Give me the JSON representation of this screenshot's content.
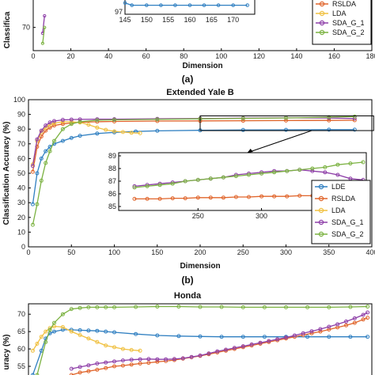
{
  "colors": {
    "LDE": "#2f7fc1",
    "RSLDA": "#e0642a",
    "LDA": "#f0c040",
    "SDA_G_1": "#8e3fa8",
    "SDA_G_2": "#7bb241",
    "axis": "#000000",
    "grid": "#d9d9d9"
  },
  "panels": [
    {
      "label": "(a)"
    },
    {
      "label": "(b)"
    }
  ],
  "chart_data": [
    {
      "id": "top",
      "type": "line",
      "title": "",
      "xlabel": "Dimension",
      "ylabel": "Classification Accuracy (%)",
      "ylabel_visible": "Classifica",
      "xlim": [
        0,
        180
      ],
      "ylim": [
        62,
        80
      ],
      "xticks": [
        0,
        20,
        40,
        60,
        80,
        100,
        120,
        140,
        160,
        180
      ],
      "xtick_labels": [
        "0",
        "20",
        "40",
        "60",
        "80",
        "100",
        "120",
        "140",
        "160",
        "180"
      ],
      "yticks": [
        70
      ],
      "ytick_labels": [
        "70"
      ],
      "legend": [
        "RSLDA",
        "LDA",
        "SDA_G_1",
        "SDA_G_2"
      ],
      "series": [
        {
          "name": "SDA_G_1",
          "x": [
            5,
            6
          ],
          "y": [
            68,
            74
          ]
        },
        {
          "name": "SDA_G_2",
          "x": [
            5,
            6
          ],
          "y": [
            64.5,
            70
          ]
        }
      ],
      "inset": {
        "xticks": [
          145,
          150,
          155,
          160,
          165,
          170
        ],
        "ytick_labels": [
          "97"
        ],
        "series": [
          {
            "name": "LDE",
            "x": [
              145,
              146.6,
              150,
              153.3,
              156.6,
              160,
              163.3,
              166.6,
              170,
              173.3
            ],
            "y": [
              97,
              96.9,
              96.9,
              96.9,
              96.9,
              96.9,
              96.9,
              96.9,
              96.9,
              96.9
            ]
          }
        ]
      }
    },
    {
      "id": "yaleb",
      "type": "line",
      "title": "Extended Yale B",
      "xlabel": "Dimension",
      "ylabel": "Classification Accuracy (%)",
      "xlim": [
        0,
        400
      ],
      "ylim": [
        0,
        100
      ],
      "xticks": [
        0,
        50,
        100,
        150,
        200,
        250,
        300,
        350,
        400
      ],
      "yticks": [
        0,
        10,
        20,
        30,
        40,
        50,
        60,
        70,
        80,
        90,
        100
      ],
      "legend": [
        "LDE",
        "RSLDA",
        "LDA",
        "SDA_G_1",
        "SDA_G_2"
      ],
      "series": [
        {
          "name": "LDE",
          "x": [
            5,
            10,
            15,
            20,
            25,
            30,
            40,
            50,
            60,
            80,
            100,
            125,
            150,
            200,
            250,
            300,
            350,
            380
          ],
          "y": [
            29,
            50,
            60,
            65,
            68,
            70,
            72,
            74,
            75.5,
            77,
            77.8,
            78.4,
            78.8,
            79.2,
            79.4,
            79.5,
            79.6,
            79.6
          ]
        },
        {
          "name": "RSLDA",
          "x": [
            5,
            10,
            15,
            20,
            25,
            30,
            40,
            50,
            60,
            80,
            100,
            150,
            200,
            250,
            300,
            350,
            380
          ],
          "y": [
            51,
            68,
            75,
            79,
            81,
            82.5,
            83.5,
            84.2,
            84.6,
            85,
            85.2,
            85.5,
            85.6,
            85.7,
            85.8,
            85.9,
            86
          ]
        },
        {
          "name": "LDA",
          "x": [
            5,
            10,
            15,
            20,
            25,
            30,
            40,
            50,
            60,
            70,
            80,
            90,
            100,
            110,
            120,
            130
          ],
          "y": [
            56,
            72,
            78,
            81,
            83,
            84,
            85,
            85,
            84.5,
            83,
            81,
            79.5,
            78.5,
            78,
            77.5,
            77.2
          ]
        },
        {
          "name": "SDA_G_1",
          "x": [
            5,
            10,
            15,
            20,
            25,
            30,
            40,
            50,
            60,
            80,
            100,
            150,
            200,
            250,
            300,
            350,
            380
          ],
          "y": [
            55,
            73,
            79,
            82.5,
            84.5,
            85.5,
            86.3,
            86.5,
            86.6,
            86.7,
            86.8,
            87,
            87.2,
            87.5,
            87.7,
            87.6,
            87.2
          ]
        },
        {
          "name": "SDA_G_2",
          "x": [
            5,
            10,
            15,
            20,
            25,
            30,
            40,
            50,
            60,
            80,
            100,
            150,
            200,
            250,
            300,
            350,
            380
          ],
          "y": [
            15,
            29,
            45,
            57,
            65,
            72,
            80,
            83.5,
            85,
            86,
            86.3,
            86.6,
            87,
            87.3,
            87.6,
            88.1,
            88.5
          ]
        }
      ],
      "zoom_box": {
        "x": [
          200,
          380
        ],
        "y": [
          79,
          89
        ]
      },
      "inset": {
        "xlim": [
          200,
          380
        ],
        "ylim": [
          85,
          89
        ],
        "xticks": [
          250,
          300,
          350
        ],
        "yticks": [
          85,
          86,
          87,
          88,
          89
        ],
        "series": [
          {
            "name": "RSLDA",
            "x": [
              200,
              210,
              220,
              230,
              240,
              250,
              260,
              270,
              280,
              290,
              300,
              310,
              320,
              330,
              340,
              350,
              360,
              370,
              380
            ],
            "y": [
              85.6,
              85.6,
              85.6,
              85.65,
              85.65,
              85.7,
              85.7,
              85.7,
              85.75,
              85.75,
              85.8,
              85.8,
              85.8,
              85.85,
              85.85,
              85.9,
              85.9,
              85.95,
              86
            ]
          },
          {
            "name": "SDA_G_1",
            "x": [
              200,
              210,
              220,
              230,
              240,
              250,
              260,
              270,
              280,
              290,
              300,
              310,
              320,
              330,
              340,
              350,
              360,
              370,
              380
            ],
            "y": [
              86.6,
              86.7,
              86.8,
              86.9,
              87,
              87.1,
              87.2,
              87.3,
              87.5,
              87.6,
              87.7,
              87.8,
              87.8,
              87.9,
              87.8,
              87.7,
              87.5,
              87.2,
              87.1
            ]
          },
          {
            "name": "SDA_G_2",
            "x": [
              200,
              210,
              220,
              230,
              240,
              250,
              260,
              270,
              280,
              290,
              300,
              310,
              320,
              330,
              340,
              350,
              360,
              370,
              380
            ],
            "y": [
              86.5,
              86.6,
              86.7,
              86.8,
              87,
              87.1,
              87.2,
              87.3,
              87.4,
              87.5,
              87.6,
              87.7,
              87.8,
              87.9,
              88,
              88.1,
              88.3,
              88.4,
              88.5
            ]
          }
        ]
      }
    },
    {
      "id": "honda",
      "type": "line",
      "title": "Honda",
      "xlabel": "",
      "ylabel": "Classification Accuracy (%)",
      "ylabel_visible": "uracy (%)",
      "xlim": [
        0,
        400
      ],
      "ylim": [
        52.5,
        73
      ],
      "yticks": [
        55,
        60,
        65,
        70
      ],
      "series": [
        {
          "name": "LDE",
          "x": [
            5,
            15,
            20,
            25,
            30,
            40,
            50,
            60,
            70,
            80,
            90,
            100,
            125,
            150,
            175,
            200,
            225,
            250,
            275,
            300,
            325,
            350,
            375,
            395
          ],
          "y": [
            52.5,
            59.5,
            63,
            64.5,
            65,
            65.5,
            65.5,
            65.4,
            65.3,
            65.2,
            65,
            64.8,
            64.3,
            63.9,
            63.7,
            63.6,
            63.5,
            63.5,
            63.5,
            63.5,
            63.5,
            63.5,
            63.5,
            63.5
          ]
        },
        {
          "name": "RSLDA",
          "x": [
            50,
            60,
            70,
            80,
            90,
            100,
            110,
            120,
            130,
            140,
            150,
            160,
            170,
            180,
            190,
            200,
            210,
            220,
            230,
            240,
            250,
            260,
            270,
            280,
            290,
            300,
            310,
            320,
            330,
            340,
            350,
            360,
            370,
            380,
            390,
            395
          ],
          "y": [
            52.5,
            53.2,
            53.6,
            54,
            54.5,
            55,
            55.2,
            55.5,
            55.8,
            56,
            56.3,
            56.5,
            56.8,
            57.2,
            57.6,
            58,
            58.5,
            59,
            59.5,
            60,
            60.5,
            61,
            61.5,
            62,
            62.5,
            63,
            63.5,
            64,
            64.5,
            65,
            65.6,
            66.2,
            66.8,
            67.5,
            68.5,
            69
          ]
        },
        {
          "name": "LDA",
          "x": [
            5,
            10,
            15,
            20,
            25,
            30,
            40,
            50,
            60,
            70,
            80,
            90,
            100,
            110,
            120,
            130
          ],
          "y": [
            59.5,
            61.5,
            63.5,
            65,
            66,
            66.5,
            66.3,
            65,
            64,
            63,
            62,
            61,
            60.5,
            60,
            59.7,
            59.5
          ]
        },
        {
          "name": "SDA_G_1",
          "x": [
            50,
            60,
            70,
            80,
            90,
            100,
            110,
            120,
            130,
            140,
            150,
            160,
            170,
            180,
            190,
            200,
            210,
            220,
            230,
            240,
            250,
            260,
            270,
            280,
            290,
            300,
            310,
            320,
            330,
            340,
            350,
            360,
            370,
            380,
            390,
            395
          ],
          "y": [
            54.3,
            54.8,
            55.3,
            55.8,
            56.1,
            56.4,
            56.7,
            56.9,
            57,
            57.1,
            57,
            57,
            57.1,
            57.3,
            57.7,
            58.1,
            58.7,
            59.3,
            59.8,
            60.3,
            60.8,
            61.3,
            61.8,
            62.3,
            62.8,
            63.3,
            63.9,
            64.5,
            65.1,
            65.7,
            66.4,
            67.1,
            67.9,
            68.8,
            69.8,
            70.5
          ]
        },
        {
          "name": "SDA_G_2",
          "x": [
            10,
            20,
            25,
            30,
            40,
            50,
            60,
            70,
            80,
            90,
            100,
            125,
            150,
            175,
            200,
            225,
            250,
            275,
            300,
            325,
            350,
            375,
            395
          ],
          "y": [
            52.5,
            62,
            65.5,
            67.5,
            70,
            71.5,
            71.8,
            72,
            72,
            72,
            72,
            72.1,
            72.2,
            72.2,
            72.1,
            72.1,
            72,
            72,
            72,
            72,
            72,
            72.1,
            72.2
          ]
        }
      ]
    }
  ]
}
